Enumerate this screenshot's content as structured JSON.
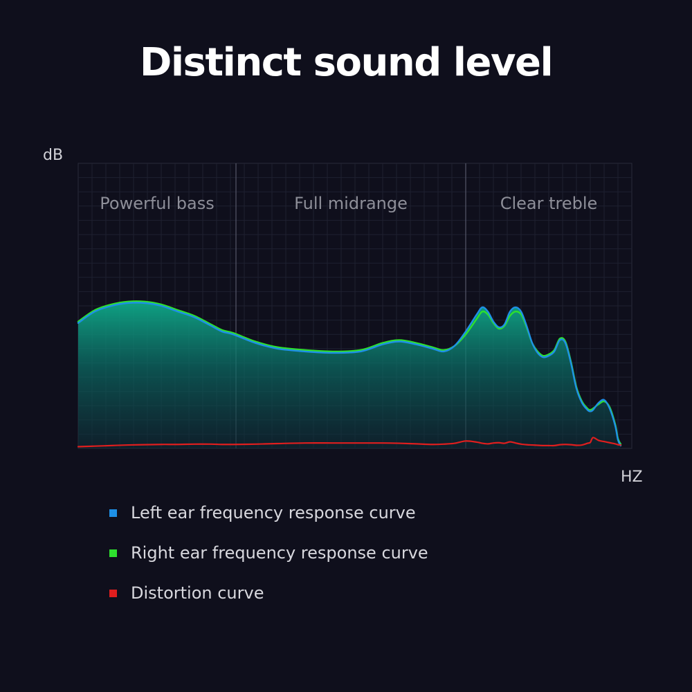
{
  "title": "Distinct sound level",
  "chart_data": {
    "type": "line",
    "xlabel": "HZ",
    "ylabel": "dB",
    "ylim": [
      0,
      100
    ],
    "x": [
      0,
      3,
      6,
      9,
      12,
      15,
      18,
      21,
      24,
      26,
      28,
      32,
      36,
      41,
      46,
      51,
      55,
      58,
      61,
      64,
      66,
      68,
      70,
      72,
      73,
      74,
      75,
      76,
      77,
      78,
      79,
      80,
      81,
      82,
      83,
      84,
      85,
      86,
      87,
      88,
      89,
      90,
      91,
      92,
      92.5,
      93,
      94,
      95,
      96,
      97,
      97.5,
      98
    ],
    "regions": [
      {
        "label": "Powerful bass",
        "start": 0,
        "end": 28.5
      },
      {
        "label": "Full midrange",
        "start": 28.5,
        "end": 70
      },
      {
        "label": "Clear treble",
        "start": 70,
        "end": 100
      }
    ],
    "series": [
      {
        "name": "Left ear frequency response curve",
        "color": "#1e90e6",
        "values": [
          44,
          48,
          50,
          51,
          51,
          50,
          48,
          46,
          43,
          41,
          40,
          37,
          35,
          34,
          33.5,
          34,
          36.5,
          37.5,
          36.5,
          35,
          34,
          36,
          41,
          47,
          49.5,
          48,
          44.5,
          42.5,
          43.5,
          48,
          49.5,
          48,
          43,
          37,
          33.5,
          32,
          32.5,
          34,
          38,
          37,
          30,
          21,
          16,
          13.5,
          13,
          13.5,
          16,
          17,
          14,
          8,
          3,
          1
        ]
      },
      {
        "name": "Right ear frequency response curve",
        "color": "#2ee02e",
        "values": [
          44.5,
          48.5,
          50.5,
          51.5,
          51.5,
          50.5,
          48.5,
          46.5,
          43.5,
          41.5,
          40.5,
          37.5,
          35.5,
          34.5,
          34,
          34.5,
          37,
          38,
          37,
          35.5,
          34.5,
          36,
          40,
          45.5,
          48,
          47,
          44,
          42,
          43,
          46.5,
          48,
          47,
          42.5,
          37,
          34,
          32.5,
          33,
          34.5,
          38.5,
          37.5,
          30.5,
          21.5,
          16.5,
          14,
          13.5,
          14,
          15.5,
          16.5,
          14.5,
          8.5,
          3.5,
          1.5
        ]
      },
      {
        "name": "Distortion curve",
        "color": "#e01e1e",
        "values": [
          0.6,
          0.8,
          1,
          1.2,
          1.3,
          1.4,
          1.4,
          1.5,
          1.5,
          1.4,
          1.4,
          1.5,
          1.7,
          1.9,
          1.9,
          1.9,
          1.9,
          1.8,
          1.6,
          1.4,
          1.5,
          1.8,
          2.6,
          2.2,
          1.8,
          1.6,
          1.9,
          2,
          1.8,
          2.3,
          1.9,
          1.5,
          1.3,
          1.2,
          1.1,
          1,
          1,
          1,
          1.3,
          1.4,
          1.3,
          1.1,
          1.2,
          1.8,
          2.1,
          3.8,
          2.8,
          2.4,
          2,
          1.6,
          1.3,
          1.2
        ]
      }
    ]
  },
  "legend": [
    {
      "label": "Left ear frequency response curve",
      "color": "#1e90e6"
    },
    {
      "label": "Right ear frequency response curve",
      "color": "#2ee02e"
    },
    {
      "label": "Distortion curve",
      "color": "#e01e1e"
    }
  ]
}
